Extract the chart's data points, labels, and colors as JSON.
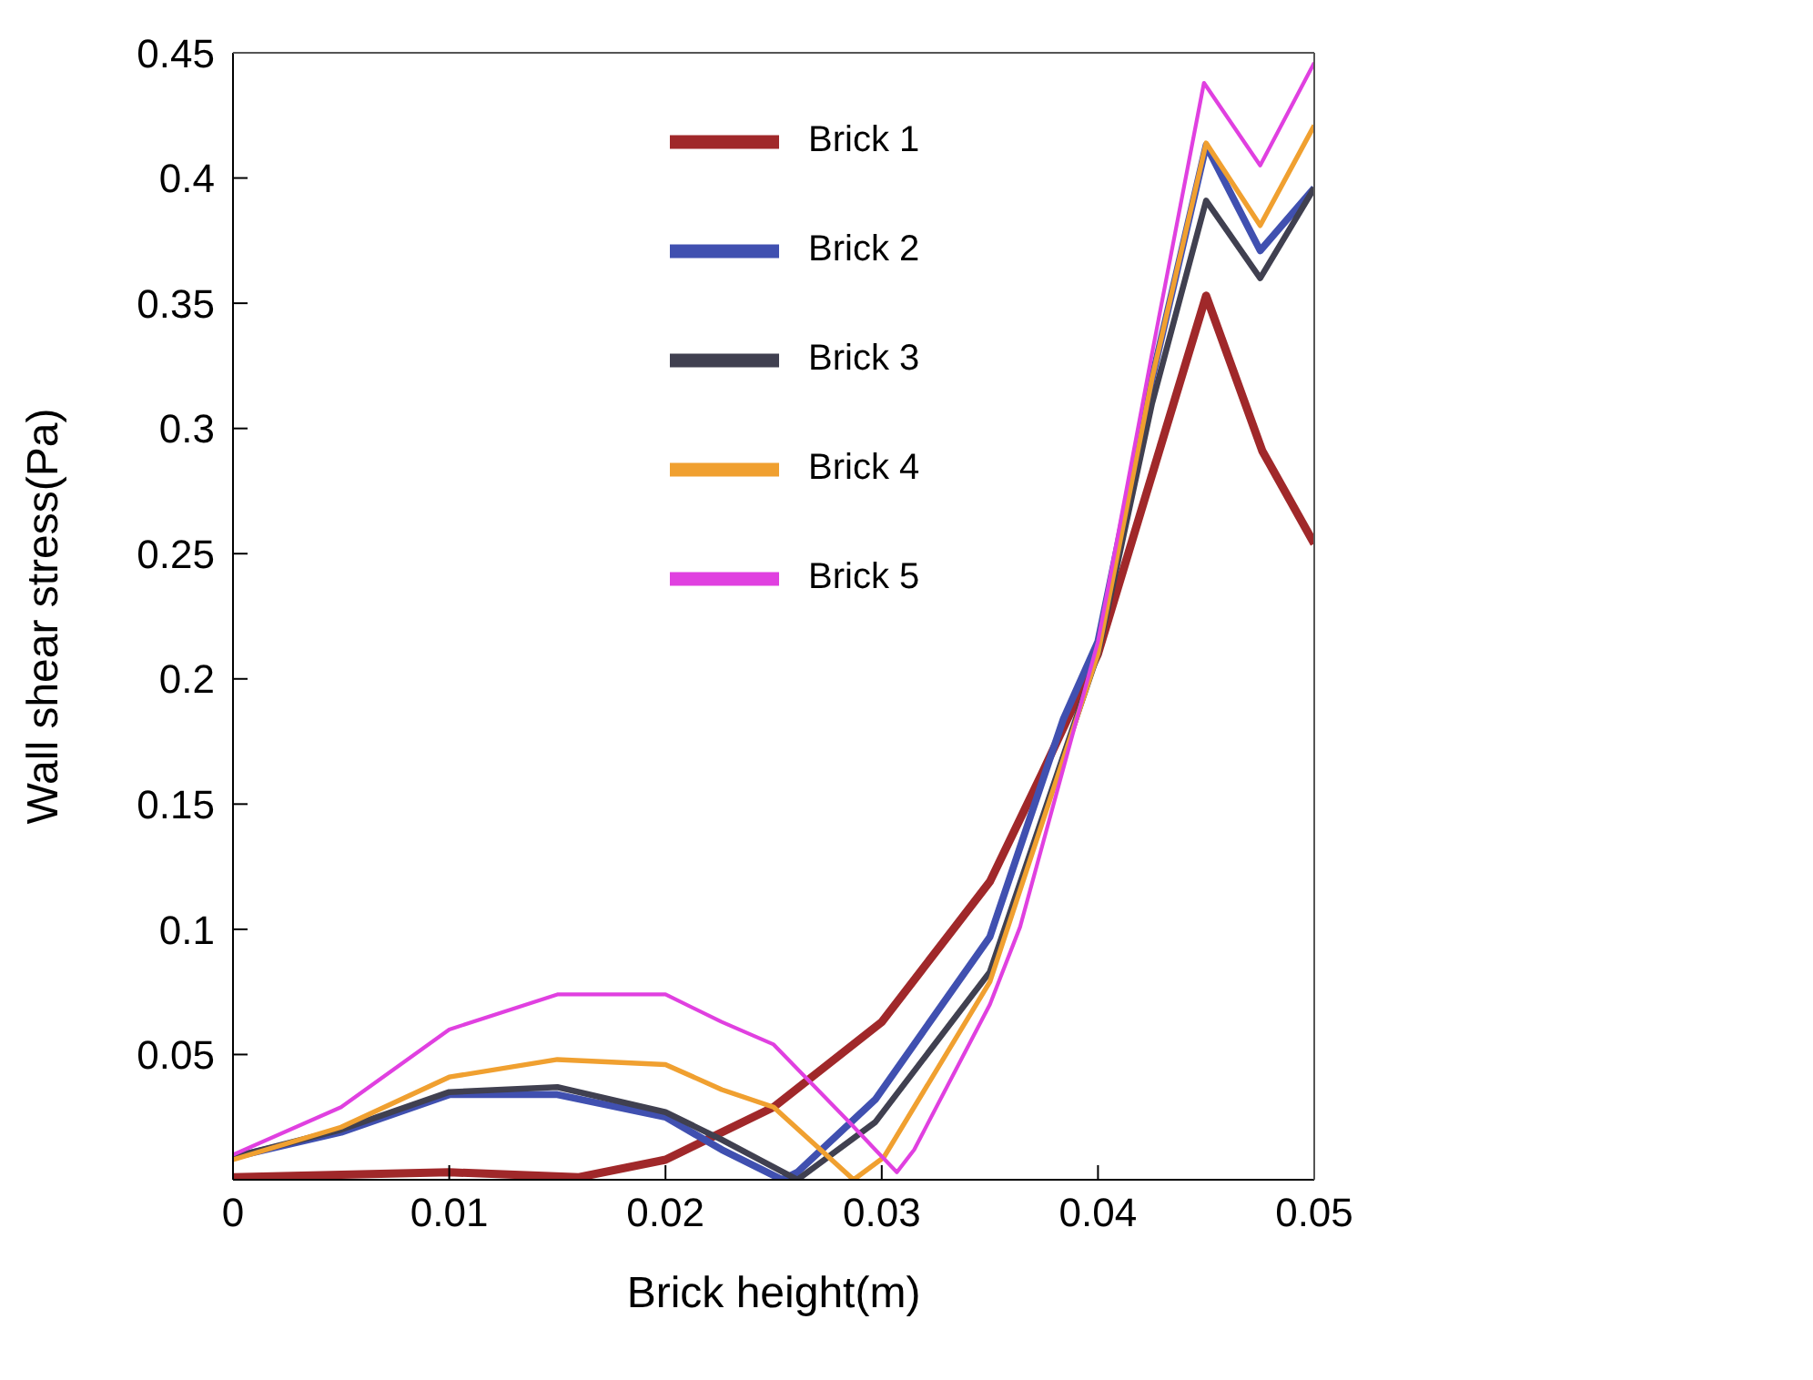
{
  "chart_data": {
    "type": "line",
    "xlabel": "Brick height(m)",
    "ylabel": "Wall shear stress(Pa)",
    "xlim": [
      0,
      0.05
    ],
    "ylim": [
      0,
      0.45
    ],
    "xticks": [
      0,
      0.01,
      0.02,
      0.03,
      0.04,
      0.05
    ],
    "yticks": [
      0.05,
      0.1,
      0.15,
      0.2,
      0.25,
      0.3,
      0.35,
      0.4,
      0.45
    ],
    "grid": false,
    "legend": "top right",
    "marker": "none",
    "line_style": "solid",
    "series": [
      {
        "name": "Brick 1",
        "color": "#a0282a",
        "x": [
          0,
          0.005,
          0.01,
          0.016,
          0.02,
          0.025,
          0.03,
          0.035,
          0.0374,
          0.04,
          0.045,
          0.0476,
          0.05
        ],
        "values": [
          0.001,
          0.002,
          0.003,
          0.001,
          0.008,
          0.029,
          0.063,
          0.119,
          0.162,
          0.21,
          0.353,
          0.291,
          0.254
        ]
      },
      {
        "name": "Brick 2",
        "color": "#4050b0",
        "x": [
          0,
          0.005,
          0.01,
          0.015,
          0.02,
          0.0226,
          0.0254,
          0.0261,
          0.0297,
          0.035,
          0.0384,
          0.04,
          0.0425,
          0.045,
          0.0475,
          0.05
        ],
        "values": [
          0.009,
          0.019,
          0.034,
          0.034,
          0.025,
          0.012,
          0.0,
          0.003,
          0.032,
          0.097,
          0.184,
          0.215,
          0.32,
          0.413,
          0.371,
          0.396
        ]
      },
      {
        "name": "Brick 3",
        "color": "#404050",
        "x": [
          0,
          0.005,
          0.01,
          0.015,
          0.02,
          0.0226,
          0.0261,
          0.0297,
          0.035,
          0.04,
          0.0425,
          0.045,
          0.0475,
          0.05
        ],
        "values": [
          0.009,
          0.02,
          0.035,
          0.037,
          0.027,
          0.016,
          0.0,
          0.023,
          0.083,
          0.21,
          0.31,
          0.391,
          0.36,
          0.396
        ]
      },
      {
        "name": "Brick 4",
        "color": "#f0a030",
        "x": [
          0,
          0.005,
          0.01,
          0.015,
          0.02,
          0.0226,
          0.025,
          0.0287,
          0.0301,
          0.035,
          0.04,
          0.0425,
          0.045,
          0.0475,
          0.05
        ],
        "values": [
          0.008,
          0.021,
          0.041,
          0.048,
          0.046,
          0.036,
          0.029,
          0.0,
          0.009,
          0.079,
          0.21,
          0.32,
          0.414,
          0.381,
          0.421
        ]
      },
      {
        "name": "Brick 5",
        "color": "#e040e0",
        "x": [
          0,
          0.005,
          0.01,
          0.015,
          0.02,
          0.0226,
          0.025,
          0.0285,
          0.0297,
          0.0307,
          0.0315,
          0.035,
          0.0364,
          0.04,
          0.0425,
          0.0449,
          0.0475,
          0.05
        ],
        "values": [
          0.01,
          0.029,
          0.06,
          0.074,
          0.074,
          0.063,
          0.054,
          0.023,
          0.012,
          0.003,
          0.012,
          0.07,
          0.101,
          0.215,
          0.33,
          0.438,
          0.405,
          0.446
        ]
      }
    ]
  }
}
